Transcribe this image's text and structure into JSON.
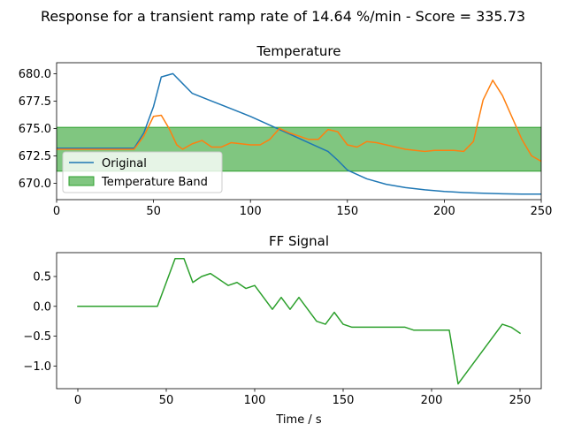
{
  "figure": {
    "suptitle": "Response for a transient ramp rate of 14.64 %/min - Score = 335.73"
  },
  "chart_data": [
    {
      "type": "line",
      "title": "Temperature",
      "xlabel": "",
      "ylabel": "",
      "xlim": [
        0,
        250
      ],
      "ylim": [
        668.5,
        681.0
      ],
      "xticks": [
        0,
        50,
        100,
        150,
        200,
        250
      ],
      "xtick_labels": [
        "0",
        "50",
        "100",
        "150",
        "200",
        "250"
      ],
      "yticks": [
        670.0,
        672.5,
        675.0,
        677.5,
        680.0
      ],
      "ytick_labels": [
        "670.0",
        "672.5",
        "675.0",
        "677.5",
        "680.0"
      ],
      "band": {
        "name": "Temperature Band",
        "low": 671.1,
        "high": 675.1,
        "color": "#2ca02c",
        "alpha": 0.6
      },
      "series": [
        {
          "name": "Original",
          "color": "#1f77b4",
          "x": [
            0,
            40,
            45,
            50,
            54,
            60,
            65,
            70,
            80,
            90,
            100,
            110,
            120,
            130,
            140,
            145,
            150,
            160,
            170,
            180,
            190,
            200,
            210,
            220,
            230,
            240,
            250
          ],
          "y": [
            673.2,
            673.2,
            674.6,
            677.0,
            679.7,
            680.0,
            679.1,
            678.2,
            677.5,
            676.8,
            676.1,
            675.3,
            674.5,
            673.7,
            672.9,
            672.1,
            671.2,
            670.4,
            669.9,
            669.6,
            669.4,
            669.25,
            669.15,
            669.08,
            669.03,
            669.0,
            669.0
          ]
        },
        {
          "name": "",
          "color": "#ff7f0e",
          "x": [
            0,
            40,
            45,
            50,
            54,
            58,
            62,
            65,
            70,
            75,
            80,
            85,
            90,
            95,
            100,
            105,
            110,
            115,
            120,
            125,
            130,
            135,
            140,
            145,
            150,
            155,
            160,
            165,
            170,
            175,
            180,
            185,
            190,
            195,
            200,
            205,
            210,
            215,
            220,
            225,
            230,
            235,
            240,
            245,
            250
          ],
          "y": [
            673.1,
            673.1,
            674.3,
            676.1,
            676.2,
            675.0,
            673.5,
            673.1,
            673.6,
            673.9,
            673.3,
            673.3,
            673.7,
            673.6,
            673.5,
            673.5,
            674.0,
            675.0,
            674.6,
            674.3,
            674.0,
            674.0,
            674.9,
            674.7,
            673.5,
            673.3,
            673.8,
            673.7,
            673.5,
            673.3,
            673.1,
            673.0,
            672.9,
            673.0,
            673.0,
            673.0,
            672.9,
            673.8,
            677.6,
            679.4,
            678.0,
            676.0,
            674.0,
            672.5,
            672.0
          ]
        }
      ],
      "legend": {
        "placement": "lower-left",
        "entries": [
          "Original",
          "Temperature Band"
        ]
      }
    },
    {
      "type": "line",
      "title": "FF Signal",
      "xlabel": "Time / s",
      "ylabel": "",
      "xlim": [
        -12,
        262
      ],
      "ylim": [
        -1.38,
        0.9
      ],
      "xticks": [
        0,
        50,
        100,
        150,
        200,
        250
      ],
      "xtick_labels": [
        "0",
        "50",
        "100",
        "150",
        "200",
        "250"
      ],
      "yticks": [
        -1.0,
        -0.5,
        0.0,
        0.5
      ],
      "ytick_labels": [
        "−1.0",
        "−0.5",
        "0.0",
        "0.5"
      ],
      "series": [
        {
          "name": "",
          "color": "#2ca02c",
          "x": [
            0,
            45,
            55,
            60,
            65,
            70,
            75,
            80,
            85,
            90,
            95,
            100,
            105,
            110,
            115,
            120,
            125,
            130,
            135,
            140,
            145,
            150,
            155,
            160,
            165,
            170,
            175,
            180,
            185,
            190,
            195,
            200,
            205,
            210,
            215,
            220,
            225,
            230,
            235,
            240,
            245,
            250
          ],
          "y": [
            0.0,
            0.0,
            0.8,
            0.8,
            0.4,
            0.5,
            0.55,
            0.45,
            0.35,
            0.4,
            0.3,
            0.35,
            0.15,
            -0.05,
            0.15,
            -0.05,
            0.15,
            -0.05,
            -0.25,
            -0.3,
            -0.1,
            -0.3,
            -0.35,
            -0.35,
            -0.35,
            -0.35,
            -0.35,
            -0.35,
            -0.35,
            -0.4,
            -0.4,
            -0.4,
            -0.4,
            -0.4,
            -1.3,
            -1.1,
            -0.9,
            -0.7,
            -0.5,
            -0.3,
            -0.35,
            -0.45
          ]
        }
      ]
    }
  ]
}
